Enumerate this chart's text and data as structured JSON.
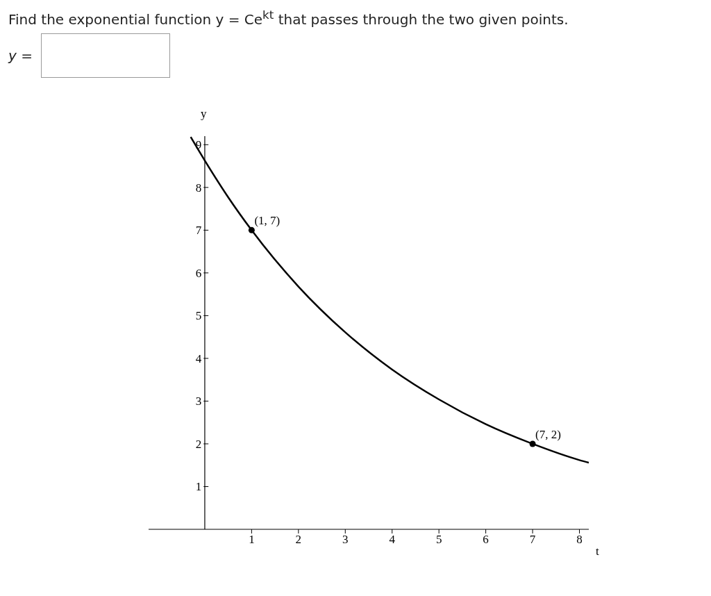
{
  "chart_data": {
    "type": "line",
    "title": "Find the exponential function y = Ce$^{kt}$ that passes through the two given points.",
    "annotations": [
      "y =",
      {
        "text": "(1, 7)",
        "x": 1,
        "y": 7
      },
      {
        "text": "(7, 2)",
        "x": 7,
        "y": 2
      }
    ],
    "xlabel": "t",
    "ylabel": "y",
    "xlim": [
      -1.2,
      8.2
    ],
    "ylim": [
      0,
      9.2
    ],
    "xticks": [
      1,
      2,
      3,
      4,
      5,
      6,
      7,
      8
    ],
    "yticks": [
      1,
      2,
      3,
      4,
      5,
      6,
      7,
      8,
      9
    ],
    "grid": false,
    "legend": false,
    "series": [
      {
        "type": "line",
        "color": "#000000",
        "marker": "none",
        "x": [
          -0.3,
          0,
          0.5,
          1,
          2,
          3,
          4,
          5,
          6,
          7,
          8,
          8.2
        ],
        "values": [
          9.18,
          8.63,
          7.77,
          7,
          5.68,
          4.61,
          3.74,
          3.04,
          2.46,
          2,
          1.62,
          1.56
        ]
      },
      {
        "type": "scatter",
        "color": "#000000",
        "marker": "circle",
        "x": [
          1,
          7
        ],
        "values": [
          7,
          2
        ]
      }
    ]
  }
}
